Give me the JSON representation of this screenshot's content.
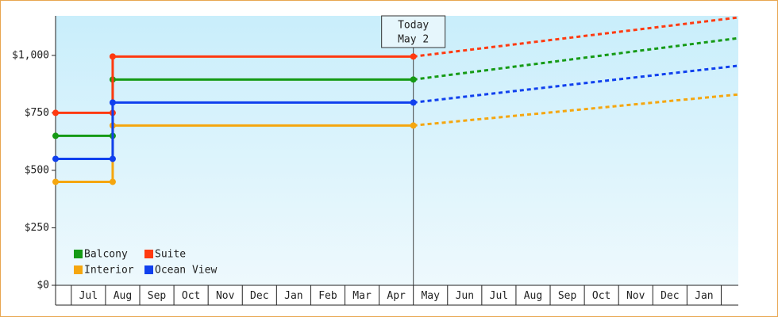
{
  "chart_data": {
    "type": "line",
    "categories": [
      "Jul",
      "Aug",
      "Sep",
      "Oct",
      "Nov",
      "Dec",
      "Jan",
      "Feb",
      "Mar",
      "Apr",
      "May",
      "Jun",
      "Jul",
      "Aug",
      "Sep",
      "Oct",
      "Nov",
      "Dec",
      "Jan"
    ],
    "xlim": [
      -0.96,
      19
    ],
    "ylim": [
      0,
      1172
    ],
    "yticks": [
      {
        "value": 0,
        "label": "$0"
      },
      {
        "value": 250,
        "label": "$250"
      },
      {
        "value": 500,
        "label": "$500"
      },
      {
        "value": 750,
        "label": "$750"
      },
      {
        "value": 1000,
        "label": "$1,000"
      }
    ],
    "x": [
      -0.96,
      0.71,
      0.71,
      9.5
    ],
    "forecast_x": [
      9.5,
      19
    ],
    "series": [
      {
        "name": "Balcony",
        "color": "#159a15",
        "values": [
          650,
          650,
          895,
          895
        ],
        "forecast_values": [
          895,
          1075
        ]
      },
      {
        "name": "Suite",
        "color": "#ff3a10",
        "values": [
          750,
          750,
          995,
          995
        ],
        "forecast_values": [
          995,
          1165
        ]
      },
      {
        "name": "Interior",
        "color": "#f5a60f",
        "values": [
          450,
          450,
          695,
          695
        ],
        "forecast_values": [
          695,
          830
        ]
      },
      {
        "name": "Ocean View",
        "color": "#1040ee",
        "values": [
          550,
          550,
          795,
          795
        ],
        "forecast_values": [
          795,
          955
        ]
      }
    ],
    "annotation": {
      "x": 9.5,
      "lines": [
        "Today",
        "May 2"
      ]
    }
  }
}
